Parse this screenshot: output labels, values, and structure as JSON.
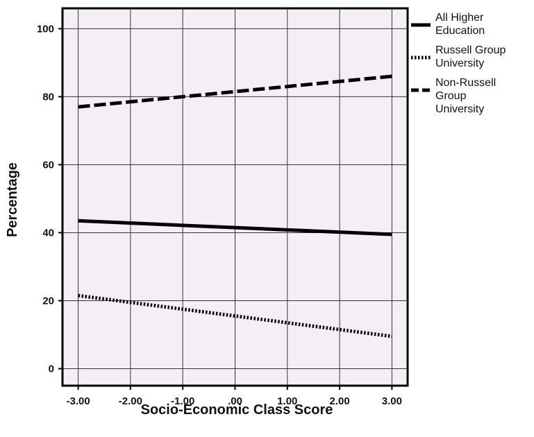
{
  "chart_data": {
    "type": "line",
    "xlabel": "Socio-Economic Class Score",
    "ylabel": "Percentage",
    "xlim": [
      -3.3,
      3.3
    ],
    "ylim": [
      -5,
      106
    ],
    "x_ticks": [
      -3,
      -2,
      -1,
      0,
      1,
      2,
      3
    ],
    "x_tick_labels": [
      "-3.00",
      "-2.00",
      "-1.00",
      ".00",
      "1.00",
      "2.00",
      "3.00"
    ],
    "y_ticks": [
      0,
      20,
      40,
      60,
      80,
      100
    ],
    "y_tick_labels": [
      "0",
      "20",
      "40",
      "60",
      "80",
      "100"
    ],
    "grid": true,
    "legend_position": "right",
    "background_color": "#f5eff5",
    "series": [
      {
        "name": "All Higher Education",
        "x": [
          -3,
          3
        ],
        "y": [
          43.5,
          39.5
        ],
        "style": "solid",
        "color": "#000000"
      },
      {
        "name": "Russell Group University",
        "x": [
          -3,
          3
        ],
        "y": [
          21.5,
          9.5
        ],
        "style": "dotted",
        "color": "#000000"
      },
      {
        "name": "Non-Russell Group University",
        "x": [
          -3,
          3
        ],
        "y": [
          77,
          86
        ],
        "style": "dashed",
        "color": "#000000"
      }
    ],
    "legend_labels": [
      [
        "All Higher",
        "Education"
      ],
      [
        "Russell Group",
        "University"
      ],
      [
        "Non-Russell",
        "Group",
        "University"
      ]
    ]
  }
}
